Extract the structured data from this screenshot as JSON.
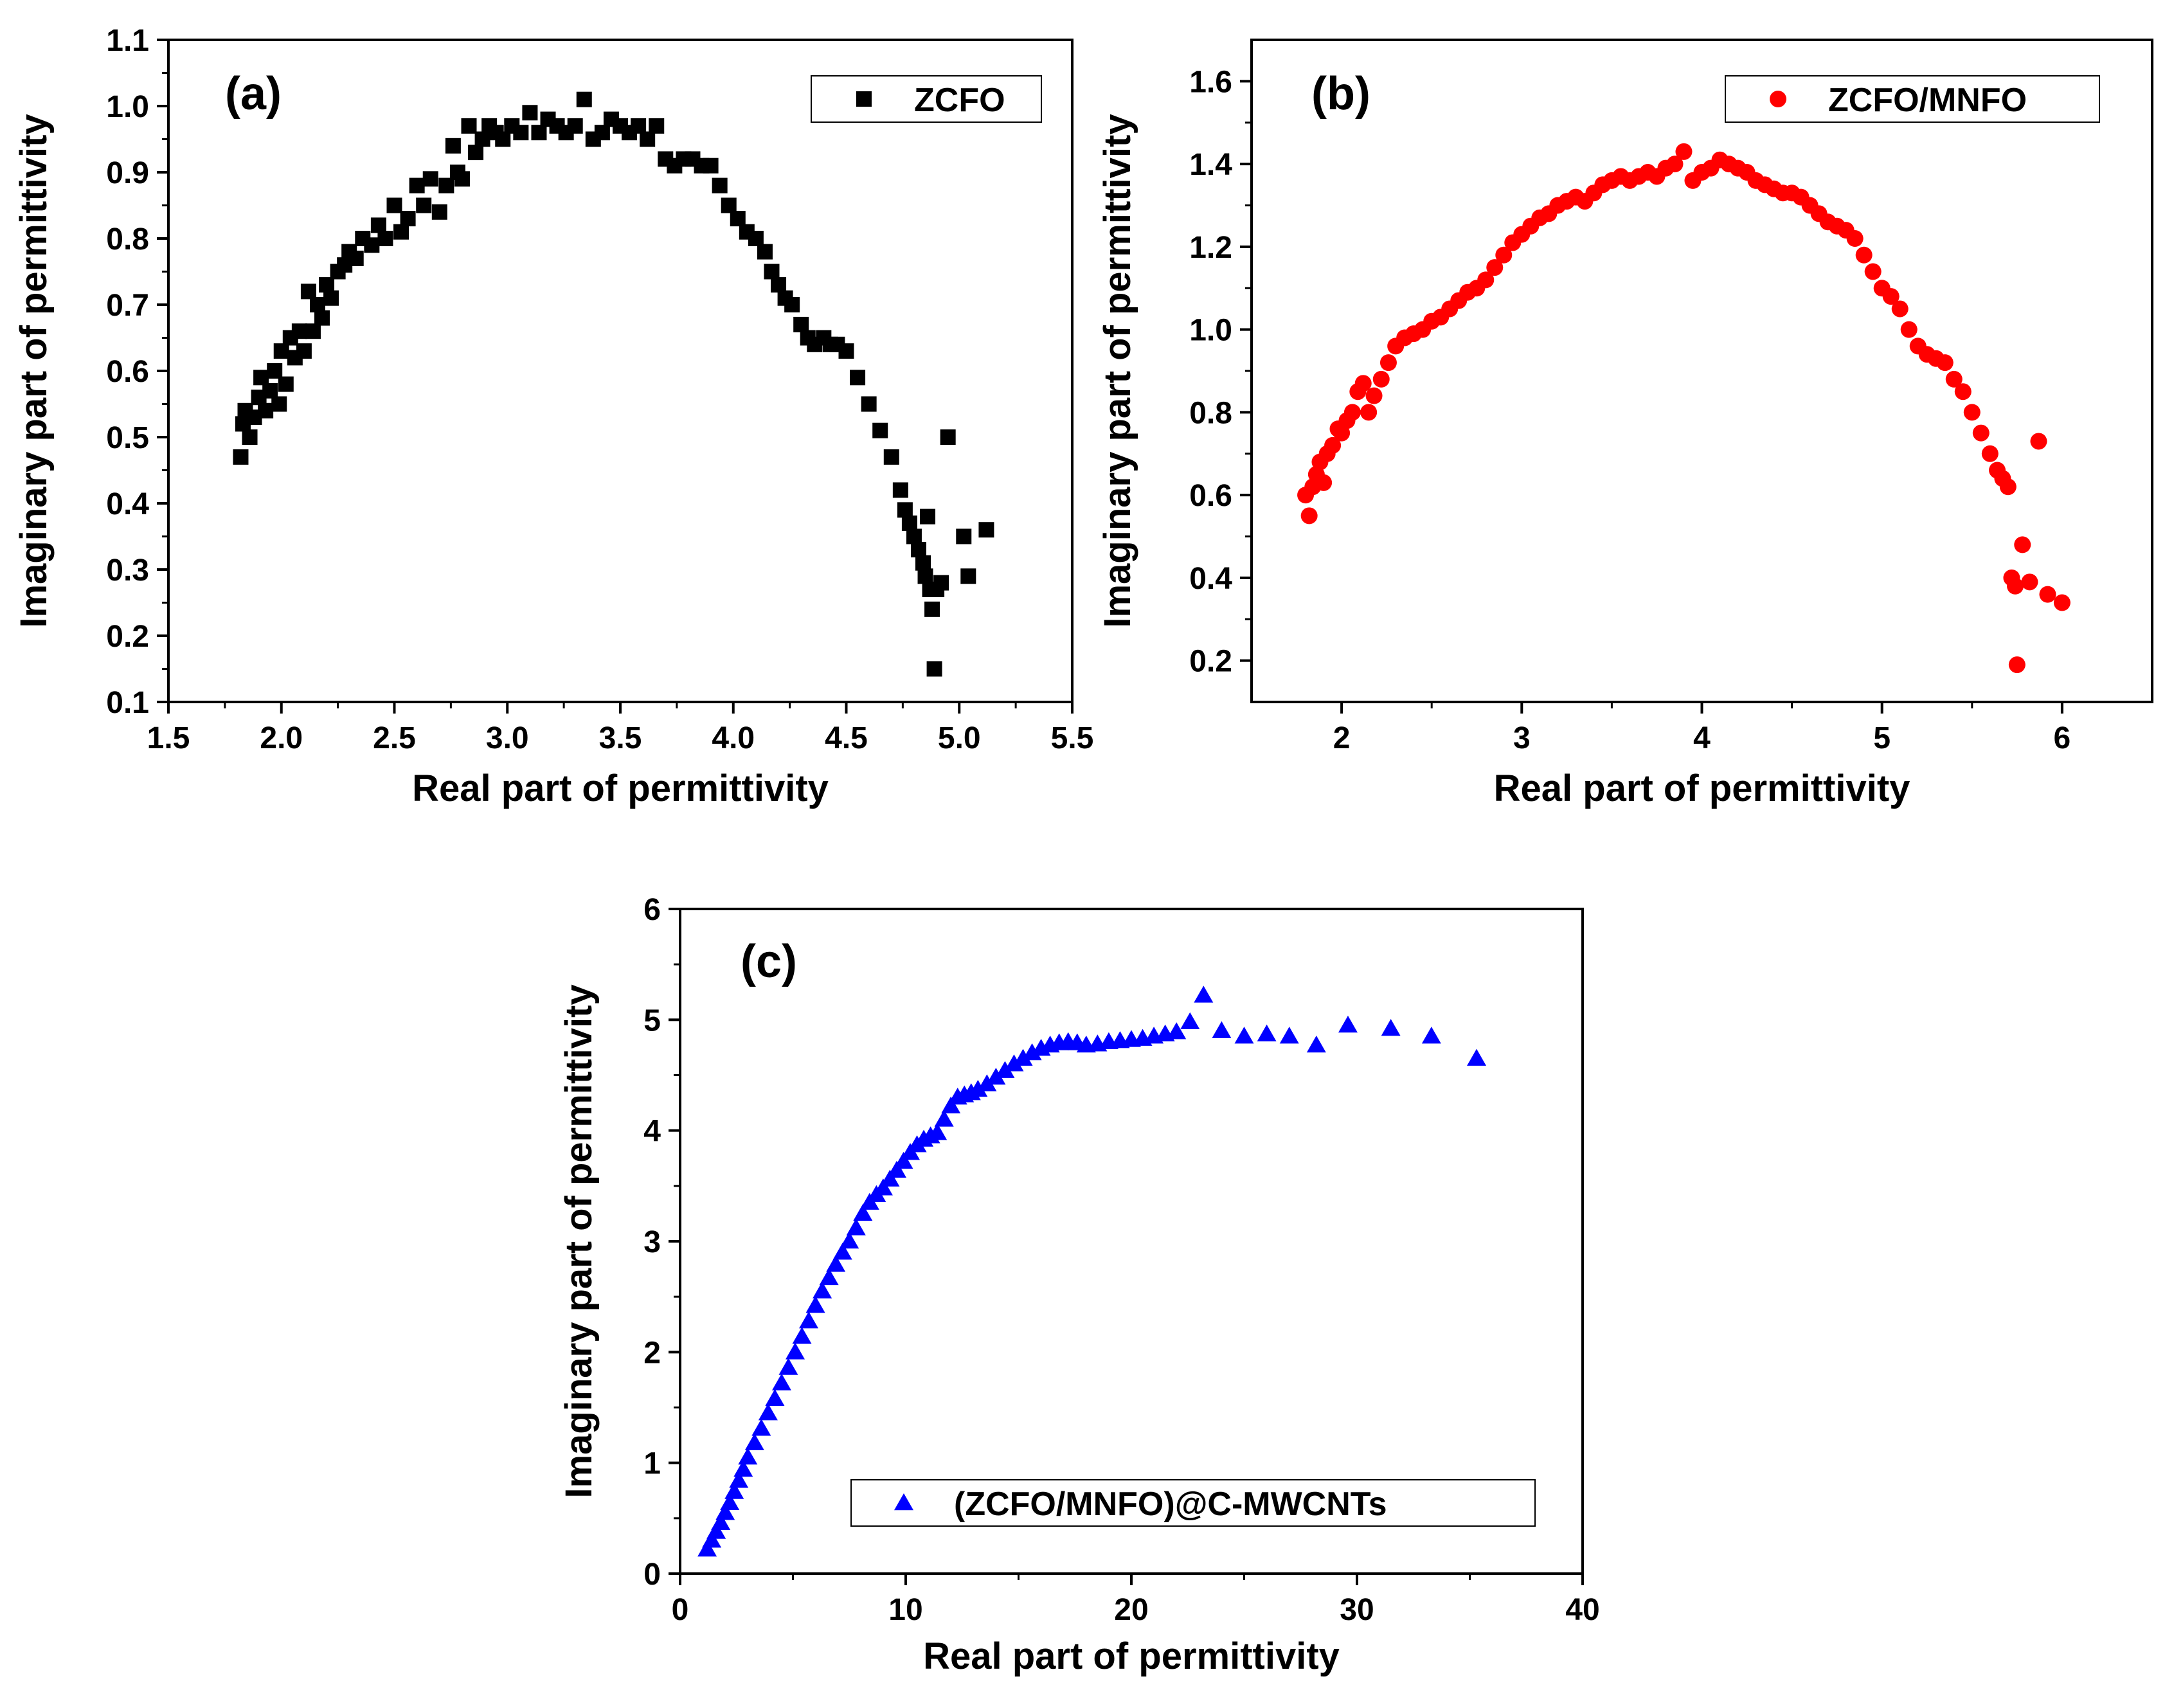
{
  "chart_data": [
    {
      "type": "scatter",
      "panel_label": "(a)",
      "xlabel": "Real part of permittivity",
      "ylabel": "Imaginary part of permittivity",
      "xlim": [
        1.5,
        5.5
      ],
      "ylim": [
        0.1,
        1.1
      ],
      "xticks": [
        1.5,
        2.0,
        2.5,
        3.0,
        3.5,
        4.0,
        4.5,
        5.0,
        5.5
      ],
      "xtick_labels": [
        "1.5",
        "2.0",
        "2.5",
        "3.0",
        "3.5",
        "4.0",
        "4.5",
        "5.0",
        "5.5"
      ],
      "yticks": [
        0.1,
        0.2,
        0.3,
        0.4,
        0.5,
        0.6,
        0.7,
        0.8,
        0.9,
        1.0,
        1.1
      ],
      "ytick_labels": [
        "0.1",
        "0.2",
        "0.3",
        "0.4",
        "0.5",
        "0.6",
        "0.7",
        "0.8",
        "0.9",
        "1.0",
        "1.1"
      ],
      "legend_position": "top-right",
      "series": [
        {
          "name": "ZCFO",
          "marker": "square",
          "color": "#000000",
          "x": [
            1.82,
            1.83,
            1.84,
            1.86,
            1.88,
            1.9,
            1.91,
            1.93,
            1.95,
            1.97,
            1.99,
            2.0,
            2.02,
            2.04,
            2.06,
            2.08,
            2.1,
            2.12,
            2.14,
            2.16,
            2.18,
            2.2,
            2.22,
            2.25,
            2.28,
            2.3,
            2.33,
            2.36,
            2.4,
            2.43,
            2.46,
            2.5,
            2.53,
            2.56,
            2.6,
            2.63,
            2.66,
            2.7,
            2.73,
            2.76,
            2.78,
            2.8,
            2.83,
            2.86,
            2.89,
            2.92,
            2.95,
            2.98,
            3.02,
            3.06,
            3.1,
            3.14,
            3.18,
            3.22,
            3.26,
            3.3,
            3.34,
            3.38,
            3.42,
            3.46,
            3.5,
            3.54,
            3.58,
            3.62,
            3.66,
            3.7,
            3.74,
            3.78,
            3.82,
            3.86,
            3.9,
            3.94,
            3.98,
            4.02,
            4.06,
            4.1,
            4.14,
            4.17,
            4.2,
            4.23,
            4.26,
            4.3,
            4.33,
            4.36,
            4.4,
            4.43,
            4.46,
            4.5,
            4.55,
            4.6,
            4.65,
            4.7,
            4.74,
            4.76,
            4.78,
            4.8,
            4.82,
            4.84,
            4.85,
            4.86,
            4.87,
            4.88,
            4.89,
            4.9,
            4.92,
            4.95,
            5.02,
            5.04,
            5.12
          ],
          "y": [
            0.47,
            0.52,
            0.54,
            0.5,
            0.53,
            0.56,
            0.59,
            0.54,
            0.57,
            0.6,
            0.55,
            0.63,
            0.58,
            0.65,
            0.62,
            0.66,
            0.63,
            0.72,
            0.66,
            0.7,
            0.68,
            0.73,
            0.71,
            0.75,
            0.76,
            0.78,
            0.77,
            0.8,
            0.79,
            0.82,
            0.8,
            0.85,
            0.81,
            0.83,
            0.88,
            0.85,
            0.89,
            0.84,
            0.88,
            0.94,
            0.9,
            0.89,
            0.97,
            0.93,
            0.95,
            0.97,
            0.96,
            0.95,
            0.97,
            0.96,
            0.99,
            0.96,
            0.98,
            0.97,
            0.96,
            0.97,
            1.01,
            0.95,
            0.96,
            0.98,
            0.97,
            0.96,
            0.97,
            0.95,
            0.97,
            0.92,
            0.91,
            0.92,
            0.92,
            0.91,
            0.91,
            0.88,
            0.85,
            0.83,
            0.81,
            0.8,
            0.78,
            0.75,
            0.73,
            0.71,
            0.7,
            0.67,
            0.65,
            0.64,
            0.65,
            0.64,
            0.64,
            0.63,
            0.59,
            0.55,
            0.51,
            0.47,
            0.42,
            0.39,
            0.37,
            0.35,
            0.33,
            0.31,
            0.29,
            0.38,
            0.27,
            0.24,
            0.15,
            0.27,
            0.28,
            0.5,
            0.35,
            0.29,
            0.36
          ],
          "_note": "x/y arrays are scatter points read off the axes"
        }
      ]
    },
    {
      "type": "scatter",
      "panel_label": "(b)",
      "xlabel": "Real part of permittivity",
      "ylabel": "Imaginary part of permittivity",
      "xlim": [
        1.5,
        6.5
      ],
      "ylim": [
        0.1,
        1.7
      ],
      "xticks": [
        2,
        3,
        4,
        5,
        6
      ],
      "xtick_labels": [
        "2",
        "3",
        "4",
        "5",
        "6"
      ],
      "yticks": [
        0.2,
        0.4,
        0.6,
        0.8,
        1.0,
        1.2,
        1.4,
        1.6
      ],
      "ytick_labels": [
        "0.2",
        "0.4",
        "0.6",
        "0.8",
        "1.0",
        "1.2",
        "1.4",
        "1.6"
      ],
      "legend_position": "top-right",
      "series": [
        {
          "name": "ZCFO/MNFO",
          "marker": "circle",
          "color": "#ff0000",
          "x": [
            1.8,
            1.82,
            1.84,
            1.86,
            1.88,
            1.9,
            1.92,
            1.95,
            1.98,
            2.0,
            2.03,
            2.06,
            2.09,
            2.12,
            2.15,
            2.18,
            2.22,
            2.26,
            2.3,
            2.35,
            2.4,
            2.45,
            2.5,
            2.55,
            2.6,
            2.65,
            2.7,
            2.75,
            2.8,
            2.85,
            2.9,
            2.95,
            3.0,
            3.05,
            3.1,
            3.15,
            3.2,
            3.25,
            3.3,
            3.35,
            3.4,
            3.45,
            3.5,
            3.55,
            3.6,
            3.65,
            3.7,
            3.75,
            3.8,
            3.85,
            3.9,
            3.95,
            4.0,
            4.05,
            4.1,
            4.15,
            4.2,
            4.25,
            4.3,
            4.35,
            4.4,
            4.45,
            4.5,
            4.55,
            4.6,
            4.65,
            4.7,
            4.75,
            4.8,
            4.85,
            4.9,
            4.95,
            5.0,
            5.05,
            5.1,
            5.15,
            5.2,
            5.25,
            5.3,
            5.35,
            5.4,
            5.45,
            5.5,
            5.55,
            5.6,
            5.64,
            5.67,
            5.7,
            5.72,
            5.74,
            5.78,
            5.82,
            5.87,
            5.92,
            6.0
          ],
          "y": [
            0.6,
            0.55,
            0.62,
            0.65,
            0.68,
            0.63,
            0.7,
            0.72,
            0.76,
            0.75,
            0.78,
            0.8,
            0.85,
            0.87,
            0.8,
            0.84,
            0.88,
            0.92,
            0.96,
            0.98,
            0.99,
            1.0,
            1.02,
            1.03,
            1.05,
            1.07,
            1.09,
            1.1,
            1.12,
            1.15,
            1.18,
            1.21,
            1.23,
            1.25,
            1.27,
            1.28,
            1.3,
            1.31,
            1.32,
            1.31,
            1.33,
            1.35,
            1.36,
            1.37,
            1.36,
            1.37,
            1.38,
            1.37,
            1.39,
            1.4,
            1.43,
            1.36,
            1.38,
            1.39,
            1.41,
            1.4,
            1.39,
            1.38,
            1.36,
            1.35,
            1.34,
            1.33,
            1.33,
            1.32,
            1.3,
            1.28,
            1.26,
            1.25,
            1.24,
            1.22,
            1.18,
            1.14,
            1.1,
            1.08,
            1.05,
            1.0,
            0.96,
            0.94,
            0.93,
            0.92,
            0.88,
            0.85,
            0.8,
            0.75,
            0.7,
            0.66,
            0.64,
            0.62,
            0.4,
            0.38,
            0.48,
            0.39,
            0.73,
            0.36,
            0.34
          ],
          "outliers": {
            "x": [
              5.75
            ],
            "y": [
              0.19
            ]
          },
          "_note": "x/y arrays are scatter points read off the axes"
        }
      ]
    },
    {
      "type": "scatter",
      "panel_label": "(c)",
      "xlabel": "Real part of permittivity",
      "ylabel": "Imaginary part of permittivity",
      "xlim": [
        0,
        40
      ],
      "ylim": [
        0,
        6
      ],
      "xticks": [
        0,
        10,
        20,
        30,
        40
      ],
      "xtick_labels": [
        "0",
        "10",
        "20",
        "30",
        "40"
      ],
      "yticks": [
        0,
        1,
        2,
        3,
        4,
        5,
        6
      ],
      "ytick_labels": [
        "0",
        "1",
        "2",
        "3",
        "4",
        "5",
        "6"
      ],
      "legend_position": "bottom-right",
      "series": [
        {
          "name": "(ZCFO/MNFO)@C-MWCNTs",
          "marker": "triangle",
          "color": "#0000ff",
          "x": [
            1.2,
            1.4,
            1.6,
            1.8,
            2.0,
            2.2,
            2.4,
            2.6,
            2.8,
            3.0,
            3.3,
            3.6,
            3.9,
            4.2,
            4.5,
            4.8,
            5.1,
            5.4,
            5.7,
            6.0,
            6.3,
            6.6,
            6.9,
            7.2,
            7.5,
            7.8,
            8.1,
            8.4,
            8.7,
            9.0,
            9.3,
            9.6,
            9.9,
            10.2,
            10.5,
            10.8,
            11.1,
            11.4,
            11.7,
            12.0,
            12.3,
            12.6,
            12.9,
            13.2,
            13.6,
            14.0,
            14.4,
            14.8,
            15.2,
            15.6,
            16.0,
            16.4,
            16.8,
            17.2,
            17.6,
            18.0,
            18.5,
            19.0,
            19.5,
            20.0,
            20.5,
            21.0,
            21.5,
            22.0,
            22.6,
            23.2,
            24.0,
            25.0,
            26.0,
            27.0,
            28.2,
            29.6,
            31.5,
            33.3,
            35.3
          ],
          "y": [
            0.22,
            0.3,
            0.38,
            0.46,
            0.55,
            0.64,
            0.74,
            0.84,
            0.94,
            1.05,
            1.18,
            1.31,
            1.45,
            1.58,
            1.72,
            1.86,
            2.0,
            2.14,
            2.28,
            2.42,
            2.55,
            2.67,
            2.79,
            2.9,
            3.0,
            3.12,
            3.25,
            3.35,
            3.42,
            3.48,
            3.56,
            3.64,
            3.72,
            3.8,
            3.87,
            3.92,
            3.95,
            3.98,
            4.1,
            4.22,
            4.3,
            4.32,
            4.34,
            4.37,
            4.42,
            4.48,
            4.54,
            4.6,
            4.65,
            4.7,
            4.74,
            4.77,
            4.79,
            4.8,
            4.79,
            4.77,
            4.78,
            4.8,
            4.81,
            4.82,
            4.83,
            4.85,
            4.87,
            4.89,
            4.98,
            5.22,
            4.9,
            4.85,
            4.87,
            4.85,
            4.77,
            4.95,
            4.92,
            4.85,
            4.65
          ],
          "_note": "x/y arrays are scatter points read off the axes"
        }
      ]
    }
  ]
}
